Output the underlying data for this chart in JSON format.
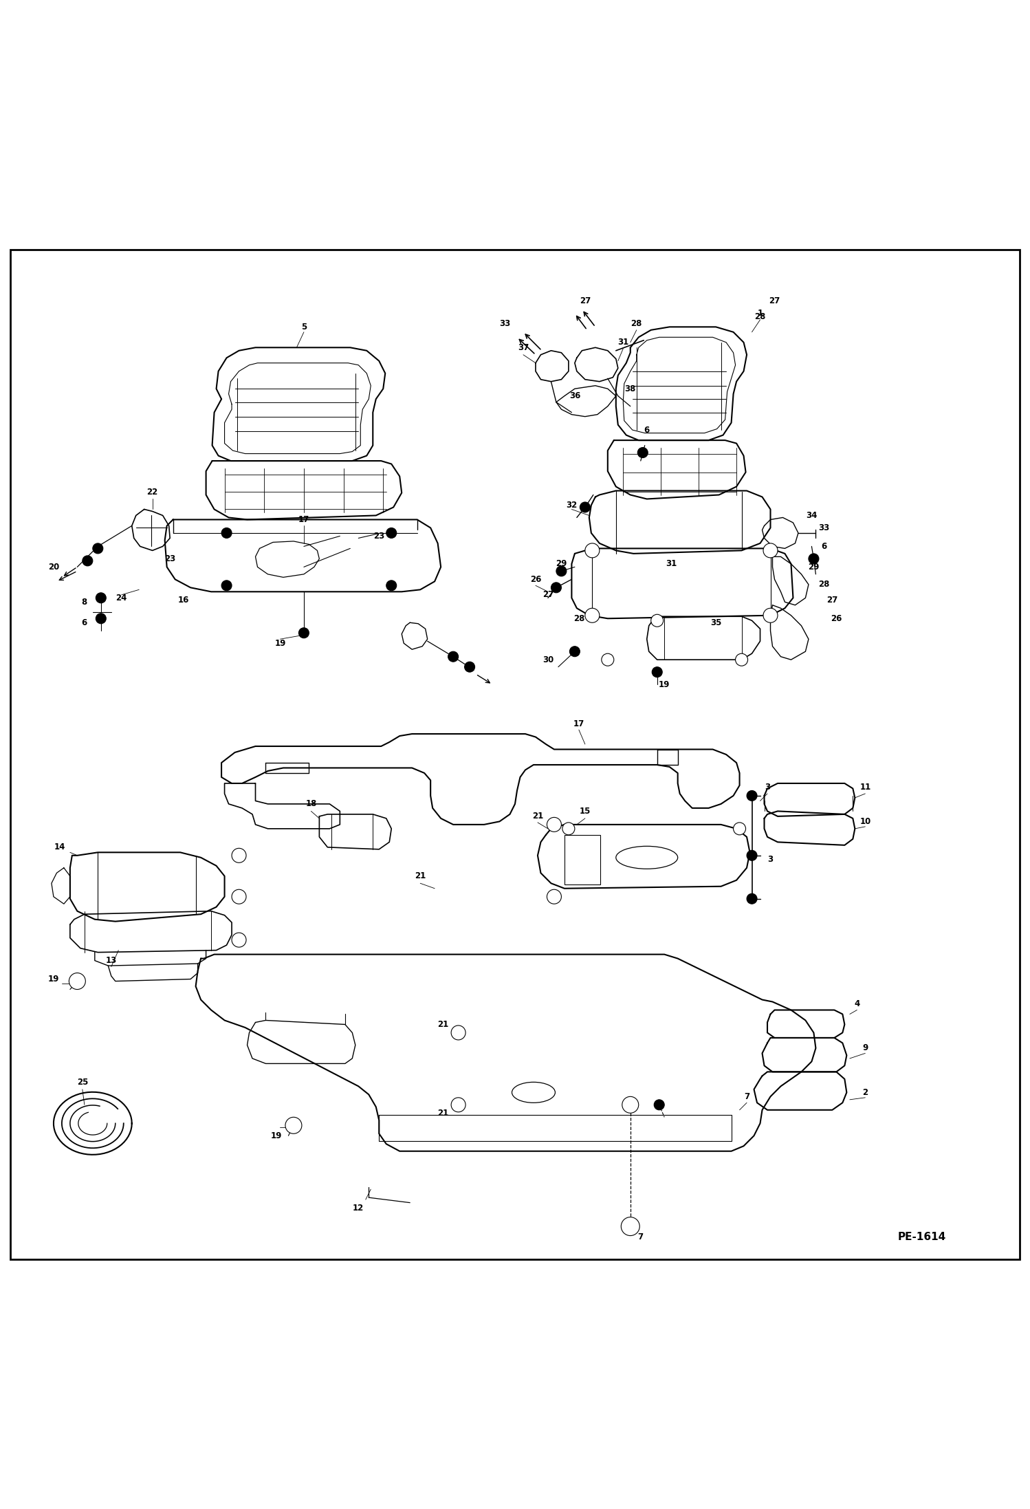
{
  "background_color": "#ffffff",
  "border_color": "#000000",
  "line_color": "#000000",
  "page_code": "PE-1614",
  "fig_width": 14.98,
  "fig_height": 21.94,
  "dpi": 100
}
